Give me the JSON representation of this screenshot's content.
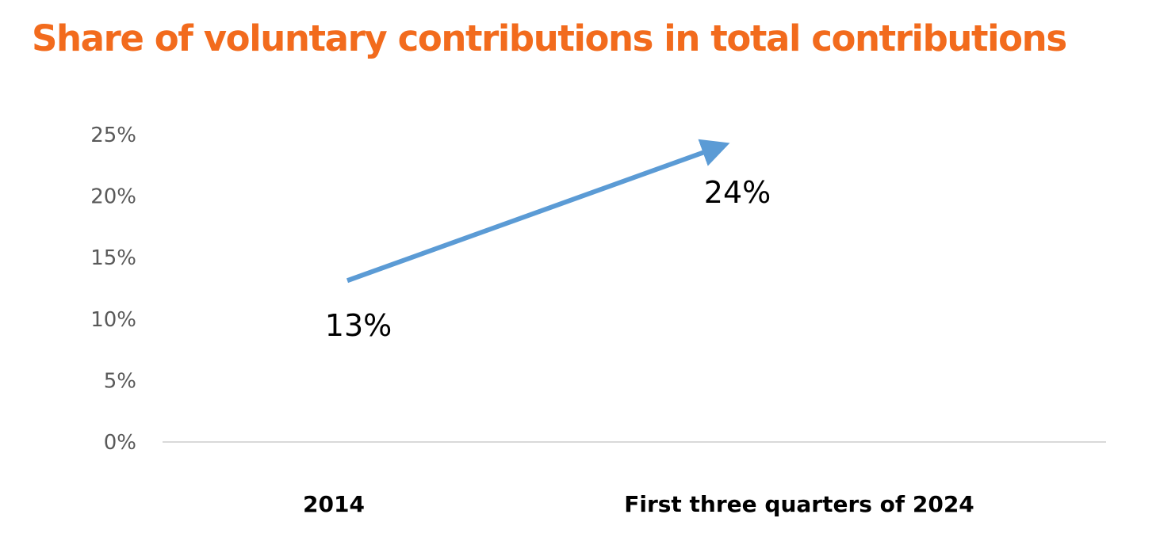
{
  "colors": {
    "title": "#F26B1D",
    "series": "#5B9BD5",
    "axis_line": "#D9D9D9",
    "tick_text": "#595959"
  },
  "chart_data": {
    "type": "line",
    "title": "Share of voluntary contributions in total contributions",
    "categories": [
      "2014",
      "First three quarters of 2024"
    ],
    "series": [
      {
        "values": [
          13,
          24
        ],
        "data_labels": [
          "13%",
          "24%"
        ],
        "arrow_end": true
      }
    ],
    "ylim": [
      0,
      25
    ],
    "y_ticks": [
      0,
      5,
      10,
      15,
      20,
      25
    ],
    "y_tick_labels": [
      "0%",
      "5%",
      "10%",
      "15%",
      "20%",
      "25%"
    ],
    "xlabel": "",
    "ylabel": "",
    "grid": false
  }
}
